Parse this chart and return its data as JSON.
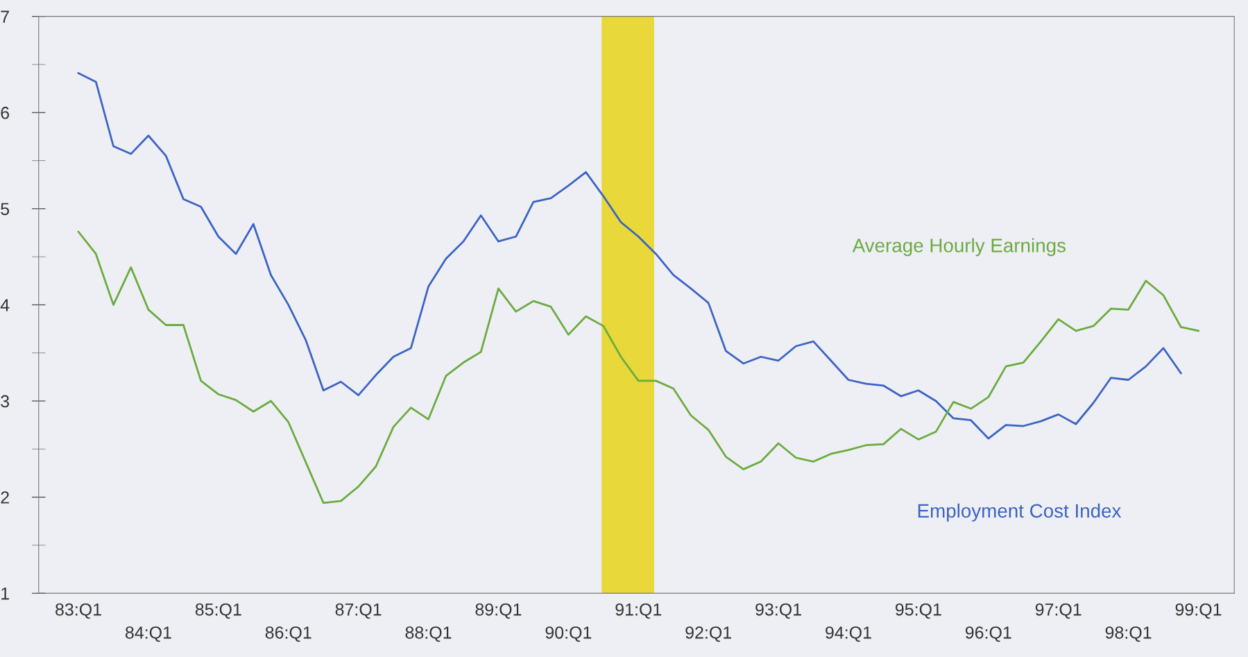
{
  "chart_data": {
    "type": "line",
    "categories": [
      "83:Q1",
      null,
      null,
      null,
      "84:Q1",
      null,
      null,
      null,
      "85:Q1",
      null,
      null,
      null,
      "86:Q1",
      null,
      null,
      null,
      "87:Q1",
      null,
      null,
      null,
      "88:Q1",
      null,
      null,
      null,
      "89:Q1",
      null,
      null,
      null,
      "90:Q1",
      null,
      null,
      null,
      "91:Q1",
      null,
      null,
      null,
      "92:Q1",
      null,
      null,
      null,
      "93:Q1",
      null,
      null,
      null,
      "94:Q1",
      null,
      null,
      null,
      "95:Q1",
      null,
      null,
      null,
      "96:Q1",
      null,
      null,
      null,
      "97:Q1",
      null,
      null,
      null,
      "98:Q1",
      null,
      null,
      null,
      "99:Q1"
    ],
    "series": [
      {
        "name": "Employment Cost Index",
        "color": "#3b63c4",
        "values": [
          6.41,
          6.32,
          5.65,
          5.57,
          5.76,
          5.55,
          5.1,
          5.02,
          4.71,
          4.53,
          4.84,
          4.31,
          4.0,
          3.63,
          3.11,
          3.2,
          3.06,
          3.27,
          3.46,
          3.55,
          4.19,
          4.48,
          4.66,
          4.93,
          4.66,
          4.71,
          5.07,
          5.11,
          5.24,
          5.38,
          5.13,
          4.86,
          4.71,
          4.53,
          4.31,
          4.17,
          4.02,
          3.52,
          3.39,
          3.46,
          3.42,
          3.57,
          3.62,
          3.42,
          3.22,
          3.18,
          3.16,
          3.05,
          3.11,
          3.0,
          2.82,
          2.8,
          2.61,
          2.75,
          2.74,
          2.79,
          2.86,
          2.76,
          2.98,
          3.24,
          3.22,
          3.36,
          3.55,
          3.29,
          null
        ]
      },
      {
        "name": "Average Hourly Earnings",
        "color": "#6aab3f",
        "values": [
          4.76,
          4.53,
          4.0,
          4.39,
          3.95,
          3.79,
          3.79,
          3.21,
          3.07,
          3.01,
          2.89,
          3.0,
          2.78,
          2.36,
          1.94,
          1.96,
          2.11,
          2.32,
          2.73,
          2.93,
          2.81,
          3.26,
          3.4,
          3.51,
          4.17,
          3.93,
          4.04,
          3.98,
          3.69,
          3.88,
          3.78,
          3.46,
          3.21,
          3.21,
          3.13,
          2.85,
          2.7,
          2.42,
          2.29,
          2.37,
          2.56,
          2.41,
          2.37,
          2.45,
          2.49,
          2.54,
          2.55,
          2.71,
          2.6,
          2.68,
          2.99,
          2.92,
          3.04,
          3.36,
          3.4,
          3.62,
          3.85,
          3.73,
          3.78,
          3.96,
          3.95,
          4.25,
          4.1,
          3.77,
          3.73
        ]
      }
    ],
    "ylim": [
      1,
      7
    ],
    "yticks": [
      1,
      2,
      3,
      4,
      5,
      6,
      7
    ],
    "grid": false,
    "legend": false,
    "marker": "none",
    "line_style": "solid"
  }
}
